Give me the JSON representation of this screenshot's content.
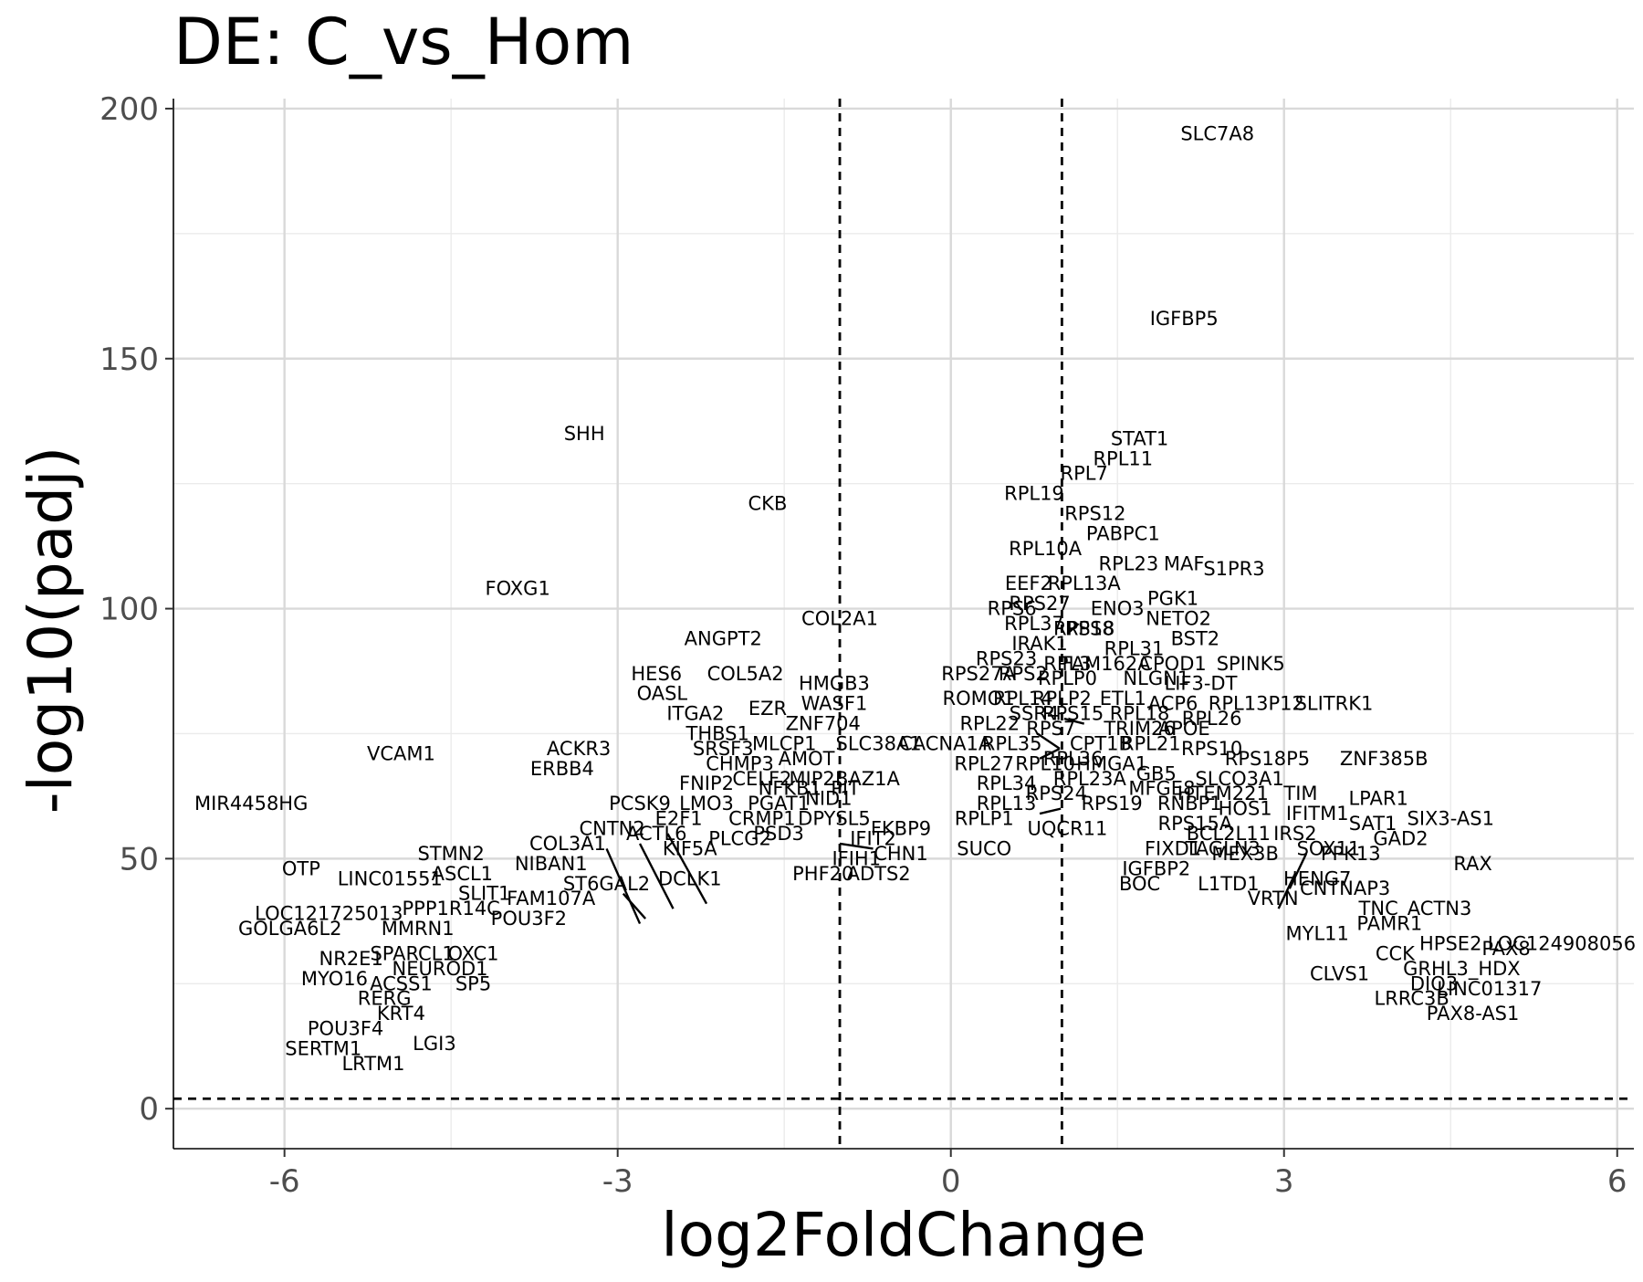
{
  "chart_data": {
    "type": "scatter",
    "title": "DE: C_vs_Hom",
    "xlabel": "log2FoldChange",
    "ylabel": "-log10(padj)",
    "xlim": [
      -7,
      6.15
    ],
    "ylim": [
      -8,
      202
    ],
    "x_ticks": [
      -6,
      -3,
      0,
      3,
      6
    ],
    "x_tick_labels": [
      "-6",
      "-3",
      "0",
      "3",
      "6"
    ],
    "y_ticks": [
      0,
      50,
      100,
      150,
      200
    ],
    "y_tick_labels": [
      "0",
      "50",
      "100",
      "150",
      "200"
    ],
    "grid": true,
    "legend": "none",
    "thresholds": {
      "log2fc": [
        -1,
        1
      ],
      "padj_neglog10": 2
    },
    "labels": [
      {
        "gene": "SLC7A8",
        "x": 2.4,
        "y": 195
      },
      {
        "gene": "IGFBP5",
        "x": 2.1,
        "y": 158
      },
      {
        "gene": "STAT1",
        "x": 1.7,
        "y": 134
      },
      {
        "gene": "SHH",
        "x": -3.3,
        "y": 135
      },
      {
        "gene": "RPL11",
        "x": 1.55,
        "y": 130
      },
      {
        "gene": "RPL7",
        "x": 1.2,
        "y": 127
      },
      {
        "gene": "RPL19",
        "x": 0.75,
        "y": 123
      },
      {
        "gene": "CKB",
        "x": -1.65,
        "y": 121
      },
      {
        "gene": "RPS12",
        "x": 1.3,
        "y": 119
      },
      {
        "gene": "PABPC1",
        "x": 1.55,
        "y": 115
      },
      {
        "gene": "RPL10A",
        "x": 0.85,
        "y": 112
      },
      {
        "gene": "RPL23",
        "x": 1.6,
        "y": 109
      },
      {
        "gene": "MAF",
        "x": 2.1,
        "y": 109
      },
      {
        "gene": "S1PR3",
        "x": 2.55,
        "y": 108
      },
      {
        "gene": "EEF2",
        "x": 0.7,
        "y": 105
      },
      {
        "gene": "RPL13A",
        "x": 1.2,
        "y": 105
      },
      {
        "gene": "FOXG1",
        "x": -3.9,
        "y": 104
      },
      {
        "gene": "PGK1",
        "x": 2.0,
        "y": 102
      },
      {
        "gene": "RPS27",
        "x": 0.8,
        "y": 101
      },
      {
        "gene": "RPS6",
        "x": 0.55,
        "y": 100
      },
      {
        "gene": "ENO3",
        "x": 1.5,
        "y": 100
      },
      {
        "gene": "COL2A1",
        "x": -1.0,
        "y": 98
      },
      {
        "gene": "NETO2",
        "x": 2.05,
        "y": 98
      },
      {
        "gene": "RPL37",
        "x": 0.75,
        "y": 97
      },
      {
        "gene": "RPS8",
        "x": 1.25,
        "y": 96
      },
      {
        "gene": "RPS18",
        "x": 1.2,
        "y": 96
      },
      {
        "gene": "ANGPT2",
        "x": -2.05,
        "y": 94
      },
      {
        "gene": "BST2",
        "x": 2.2,
        "y": 94
      },
      {
        "gene": "IRAK1",
        "x": 0.8,
        "y": 93
      },
      {
        "gene": "RPL31",
        "x": 1.65,
        "y": 92
      },
      {
        "gene": "RPS23",
        "x": 0.5,
        "y": 90
      },
      {
        "gene": "RPL3",
        "x": 1.05,
        "y": 89
      },
      {
        "gene": "FAM162A",
        "x": 1.4,
        "y": 89
      },
      {
        "gene": "CPOD1",
        "x": 2.0,
        "y": 89
      },
      {
        "gene": "SPINK5",
        "x": 2.7,
        "y": 89
      },
      {
        "gene": "HES6",
        "x": -2.65,
        "y": 87
      },
      {
        "gene": "COL5A2",
        "x": -1.85,
        "y": 87
      },
      {
        "gene": "RPS27A",
        "x": 0.25,
        "y": 87
      },
      {
        "gene": "RPS2",
        "x": 0.65,
        "y": 87
      },
      {
        "gene": "RPLP0",
        "x": 1.05,
        "y": 86
      },
      {
        "gene": "NLGN1",
        "x": 1.85,
        "y": 86
      },
      {
        "gene": "LIF3-DT",
        "x": 2.25,
        "y": 85
      },
      {
        "gene": "HMGB3",
        "x": -1.05,
        "y": 85
      },
      {
        "gene": "OASL",
        "x": -2.6,
        "y": 83
      },
      {
        "gene": "WASF1",
        "x": -1.05,
        "y": 81
      },
      {
        "gene": "ROMO1",
        "x": 0.25,
        "y": 82
      },
      {
        "gene": "RPL14",
        "x": 0.65,
        "y": 82
      },
      {
        "gene": "RPLP2",
        "x": 1.0,
        "y": 82
      },
      {
        "gene": "ETL1",
        "x": 1.55,
        "y": 82
      },
      {
        "gene": "ACP6",
        "x": 2.0,
        "y": 81
      },
      {
        "gene": "RPL13P12",
        "x": 2.75,
        "y": 81
      },
      {
        "gene": "SLITRK1",
        "x": 3.45,
        "y": 81
      },
      {
        "gene": "ITGA2",
        "x": -2.3,
        "y": 79
      },
      {
        "gene": "EZR",
        "x": -1.65,
        "y": 80
      },
      {
        "gene": "SSR4",
        "x": 0.75,
        "y": 79
      },
      {
        "gene": "RPS15",
        "x": 1.1,
        "y": 79
      },
      {
        "gene": "RPL18",
        "x": 1.7,
        "y": 79
      },
      {
        "gene": "RPL26",
        "x": 2.35,
        "y": 78
      },
      {
        "gene": "ZNF704",
        "x": -1.15,
        "y": 77
      },
      {
        "gene": "RPL22",
        "x": 0.35,
        "y": 77
      },
      {
        "gene": "RPS7",
        "x": 0.9,
        "y": 76
      },
      {
        "gene": "TRIM26",
        "x": 1.7,
        "y": 76
      },
      {
        "gene": "APOE",
        "x": 2.1,
        "y": 76
      },
      {
        "gene": "THBS1",
        "x": -2.1,
        "y": 75
      },
      {
        "gene": "SLC38A1",
        "x": -0.65,
        "y": 73
      },
      {
        "gene": "CACNA1A",
        "x": -0.05,
        "y": 73
      },
      {
        "gene": "RPL35",
        "x": 0.55,
        "y": 73
      },
      {
        "gene": "CPT1B",
        "x": 1.35,
        "y": 73
      },
      {
        "gene": "RPL21",
        "x": 1.8,
        "y": 73
      },
      {
        "gene": "RPS10",
        "x": 2.35,
        "y": 72
      },
      {
        "gene": "MLCP1",
        "x": -1.5,
        "y": 73
      },
      {
        "gene": "ACKR3",
        "x": -3.35,
        "y": 72
      },
      {
        "gene": "SRSF3",
        "x": -2.05,
        "y": 72
      },
      {
        "gene": "VCAM1",
        "x": -4.95,
        "y": 71
      },
      {
        "gene": "RPS18P5",
        "x": 2.85,
        "y": 70
      },
      {
        "gene": "ZNF385B",
        "x": 3.9,
        "y": 70
      },
      {
        "gene": "AMOT",
        "x": -1.3,
        "y": 70
      },
      {
        "gene": "RPL27",
        "x": 0.3,
        "y": 69
      },
      {
        "gene": "RPL10",
        "x": 0.85,
        "y": 69
      },
      {
        "gene": "RPL36",
        "x": 1.1,
        "y": 70
      },
      {
        "gene": "HMGA1",
        "x": 1.45,
        "y": 69
      },
      {
        "gene": "CHMP3",
        "x": -1.9,
        "y": 69
      },
      {
        "gene": "GB5",
        "x": 1.85,
        "y": 67
      },
      {
        "gene": "ERBB4",
        "x": -3.5,
        "y": 68
      },
      {
        "gene": "CELF2",
        "x": -1.7,
        "y": 66
      },
      {
        "gene": "MIP2",
        "x": -1.25,
        "y": 66
      },
      {
        "gene": "BAZ1A",
        "x": -0.75,
        "y": 66
      },
      {
        "gene": "RPL23A",
        "x": 1.25,
        "y": 66
      },
      {
        "gene": "SLCO3A1",
        "x": 2.6,
        "y": 66
      },
      {
        "gene": "RPL34",
        "x": 0.5,
        "y": 65
      },
      {
        "gene": "FNIP2",
        "x": -2.2,
        "y": 65
      },
      {
        "gene": "NFKB1",
        "x": -1.45,
        "y": 64
      },
      {
        "gene": "PIT",
        "x": -0.95,
        "y": 64
      },
      {
        "gene": "RPS24",
        "x": 0.95,
        "y": 63
      },
      {
        "gene": "MFGE8",
        "x": 1.9,
        "y": 64
      },
      {
        "gene": "HTEM221",
        "x": 2.45,
        "y": 63
      },
      {
        "gene": "TIM",
        "x": 3.15,
        "y": 63
      },
      {
        "gene": "LPAR1",
        "x": 3.85,
        "y": 62
      },
      {
        "gene": "NID1",
        "x": -1.1,
        "y": 62
      },
      {
        "gene": "PCSK9",
        "x": -2.8,
        "y": 61
      },
      {
        "gene": "LMO3",
        "x": -2.2,
        "y": 61
      },
      {
        "gene": "PGAT1",
        "x": -1.55,
        "y": 61
      },
      {
        "gene": "RPL13",
        "x": 0.5,
        "y": 61
      },
      {
        "gene": "RPS19",
        "x": 1.45,
        "y": 61
      },
      {
        "gene": "RNBP1",
        "x": 2.15,
        "y": 61
      },
      {
        "gene": "HOS1",
        "x": 2.65,
        "y": 60
      },
      {
        "gene": "IFITM1",
        "x": 3.3,
        "y": 59
      },
      {
        "gene": "CRMP1",
        "x": -1.7,
        "y": 58
      },
      {
        "gene": "DPYSL5",
        "x": -1.05,
        "y": 58
      },
      {
        "gene": "E2F1",
        "x": -2.45,
        "y": 58
      },
      {
        "gene": "RPLP1",
        "x": 0.3,
        "y": 58
      },
      {
        "gene": "RPS15A",
        "x": 2.2,
        "y": 57
      },
      {
        "gene": "SAT1",
        "x": 3.8,
        "y": 57
      },
      {
        "gene": "SIX3-AS1",
        "x": 4.5,
        "y": 58
      },
      {
        "gene": "CNTN2",
        "x": -3.05,
        "y": 56
      },
      {
        "gene": "ACTL6",
        "x": -2.65,
        "y": 55
      },
      {
        "gene": "PSD3",
        "x": -1.55,
        "y": 55
      },
      {
        "gene": "UQCR11",
        "x": 1.05,
        "y": 56
      },
      {
        "gene": "FKBP9",
        "x": -0.45,
        "y": 56
      },
      {
        "gene": "BCL2L11",
        "x": 2.5,
        "y": 55
      },
      {
        "gene": "IRS2",
        "x": 3.1,
        "y": 55
      },
      {
        "gene": "GAD2",
        "x": 4.05,
        "y": 54
      },
      {
        "gene": "PLCG2",
        "x": -1.9,
        "y": 54
      },
      {
        "gene": "COL3A1",
        "x": -3.45,
        "y": 53
      },
      {
        "gene": "KIF5A",
        "x": -2.35,
        "y": 52
      },
      {
        "gene": "SUCO",
        "x": 0.3,
        "y": 52
      },
      {
        "gene": "IFIT2",
        "x": -0.7,
        "y": 54
      },
      {
        "gene": "CHN1",
        "x": -0.45,
        "y": 51
      },
      {
        "gene": "FIXD1",
        "x": 2.0,
        "y": 52
      },
      {
        "gene": "IGFBP2",
        "x": 1.85,
        "y": 48
      },
      {
        "gene": "TAGLN3",
        "x": 2.45,
        "y": 52
      },
      {
        "gene": "MEX3B",
        "x": 2.65,
        "y": 51
      },
      {
        "gene": "SOX11",
        "x": 3.4,
        "y": 52
      },
      {
        "gene": "PPK13",
        "x": 3.6,
        "y": 51
      },
      {
        "gene": "STMN2",
        "x": -4.5,
        "y": 51
      },
      {
        "gene": "IFIH1",
        "x": -0.85,
        "y": 50
      },
      {
        "gene": "RAX",
        "x": 4.7,
        "y": 49
      },
      {
        "gene": "NIBAN1",
        "x": -3.6,
        "y": 49
      },
      {
        "gene": "OTP",
        "x": -5.85,
        "y": 48
      },
      {
        "gene": "LINC01551",
        "x": -5.05,
        "y": 46
      },
      {
        "gene": "ASCL1",
        "x": -4.4,
        "y": 47
      },
      {
        "gene": "DCLK1",
        "x": -2.35,
        "y": 46
      },
      {
        "gene": "ST6GAL2",
        "x": -3.1,
        "y": 45
      },
      {
        "gene": "PHF20",
        "x": -1.15,
        "y": 47
      },
      {
        "gene": "ADTS2",
        "x": -0.65,
        "y": 47
      },
      {
        "gene": "HENG7",
        "x": 3.3,
        "y": 46
      },
      {
        "gene": "BOC",
        "x": 1.7,
        "y": 45
      },
      {
        "gene": "L1TD1",
        "x": 2.5,
        "y": 45
      },
      {
        "gene": "CNTNAP3",
        "x": 3.55,
        "y": 44
      },
      {
        "gene": "SLIT1",
        "x": -4.2,
        "y": 43
      },
      {
        "gene": "FAM107A",
        "x": -3.6,
        "y": 42
      },
      {
        "gene": "VRTN",
        "x": 2.9,
        "y": 42
      },
      {
        "gene": "PPP1R14C",
        "x": -4.5,
        "y": 40
      },
      {
        "gene": "LOC121725013",
        "x": -5.6,
        "y": 39
      },
      {
        "gene": "TNC",
        "x": 3.85,
        "y": 40
      },
      {
        "gene": "ACTN3",
        "x": 4.4,
        "y": 40
      },
      {
        "gene": "POU3F2",
        "x": -3.8,
        "y": 38
      },
      {
        "gene": "PAMR1",
        "x": 3.95,
        "y": 37
      },
      {
        "gene": "GOLGA6L2",
        "x": -5.95,
        "y": 36
      },
      {
        "gene": "MMRN1",
        "x": -4.8,
        "y": 36
      },
      {
        "gene": "MYL11",
        "x": 3.3,
        "y": 35
      },
      {
        "gene": "HPSE2",
        "x": 4.5,
        "y": 33
      },
      {
        "gene": "LOC124908056",
        "x": 5.5,
        "y": 33
      },
      {
        "gene": "PAX8",
        "x": 5.0,
        "y": 32
      },
      {
        "gene": "SPARCL1",
        "x": -4.85,
        "y": 31
      },
      {
        "gene": "OXC1",
        "x": -4.3,
        "y": 31
      },
      {
        "gene": "CCK",
        "x": 4.0,
        "y": 31
      },
      {
        "gene": "NR2E1",
        "x": -5.4,
        "y": 30
      },
      {
        "gene": "NEUROD1",
        "x": -4.6,
        "y": 28
      },
      {
        "gene": "GRHL3_HDX",
        "x": 4.6,
        "y": 28
      },
      {
        "gene": "CLVS1",
        "x": 3.5,
        "y": 27
      },
      {
        "gene": "MYO16",
        "x": -5.55,
        "y": 26
      },
      {
        "gene": "ACSS1",
        "x": -4.95,
        "y": 25
      },
      {
        "gene": "SP5",
        "x": -4.3,
        "y": 25
      },
      {
        "gene": "DIO3",
        "x": 4.35,
        "y": 25
      },
      {
        "gene": "LINC01317",
        "x": 4.85,
        "y": 24
      },
      {
        "gene": "LRRC3B",
        "x": 4.15,
        "y": 22
      },
      {
        "gene": "RERG",
        "x": -5.1,
        "y": 22
      },
      {
        "gene": "PAX8-AS1",
        "x": 4.7,
        "y": 19
      },
      {
        "gene": "KRT4",
        "x": -4.95,
        "y": 19
      },
      {
        "gene": "POU3F4",
        "x": -5.45,
        "y": 16
      },
      {
        "gene": "LGI3",
        "x": -4.65,
        "y": 13
      },
      {
        "gene": "SERTM1",
        "x": -5.65,
        "y": 12
      },
      {
        "gene": "LRTM1",
        "x": -5.2,
        "y": 9
      },
      {
        "gene": "MIR4458HG",
        "x": -6.3,
        "y": 61
      }
    ],
    "leaders": [
      {
        "x1": -3.1,
        "y1": 52,
        "x2": -2.8,
        "y2": 37
      },
      {
        "x1": -2.8,
        "y1": 53,
        "x2": -2.5,
        "y2": 40
      },
      {
        "x1": -2.55,
        "y1": 55,
        "x2": -2.2,
        "y2": 41
      },
      {
        "x1": -2.95,
        "y1": 43,
        "x2": -2.75,
        "y2": 38
      },
      {
        "x1": -1.0,
        "y1": 53,
        "x2": -0.7,
        "y2": 52
      },
      {
        "x1": 0.78,
        "y1": 75,
        "x2": 0.98,
        "y2": 72
      },
      {
        "x1": 0.8,
        "y1": 70,
        "x2": 0.98,
        "y2": 72
      },
      {
        "x1": 0.8,
        "y1": 59,
        "x2": 0.99,
        "y2": 60
      },
      {
        "x1": 1.02,
        "y1": 78,
        "x2": 1.2,
        "y2": 77
      },
      {
        "x1": 1.05,
        "y1": 95,
        "x2": 1.15,
        "y2": 97
      },
      {
        "x1": 2.95,
        "y1": 40,
        "x2": 3.1,
        "y2": 47
      },
      {
        "x1": 3.05,
        "y1": 44,
        "x2": 3.2,
        "y2": 51
      }
    ]
  }
}
